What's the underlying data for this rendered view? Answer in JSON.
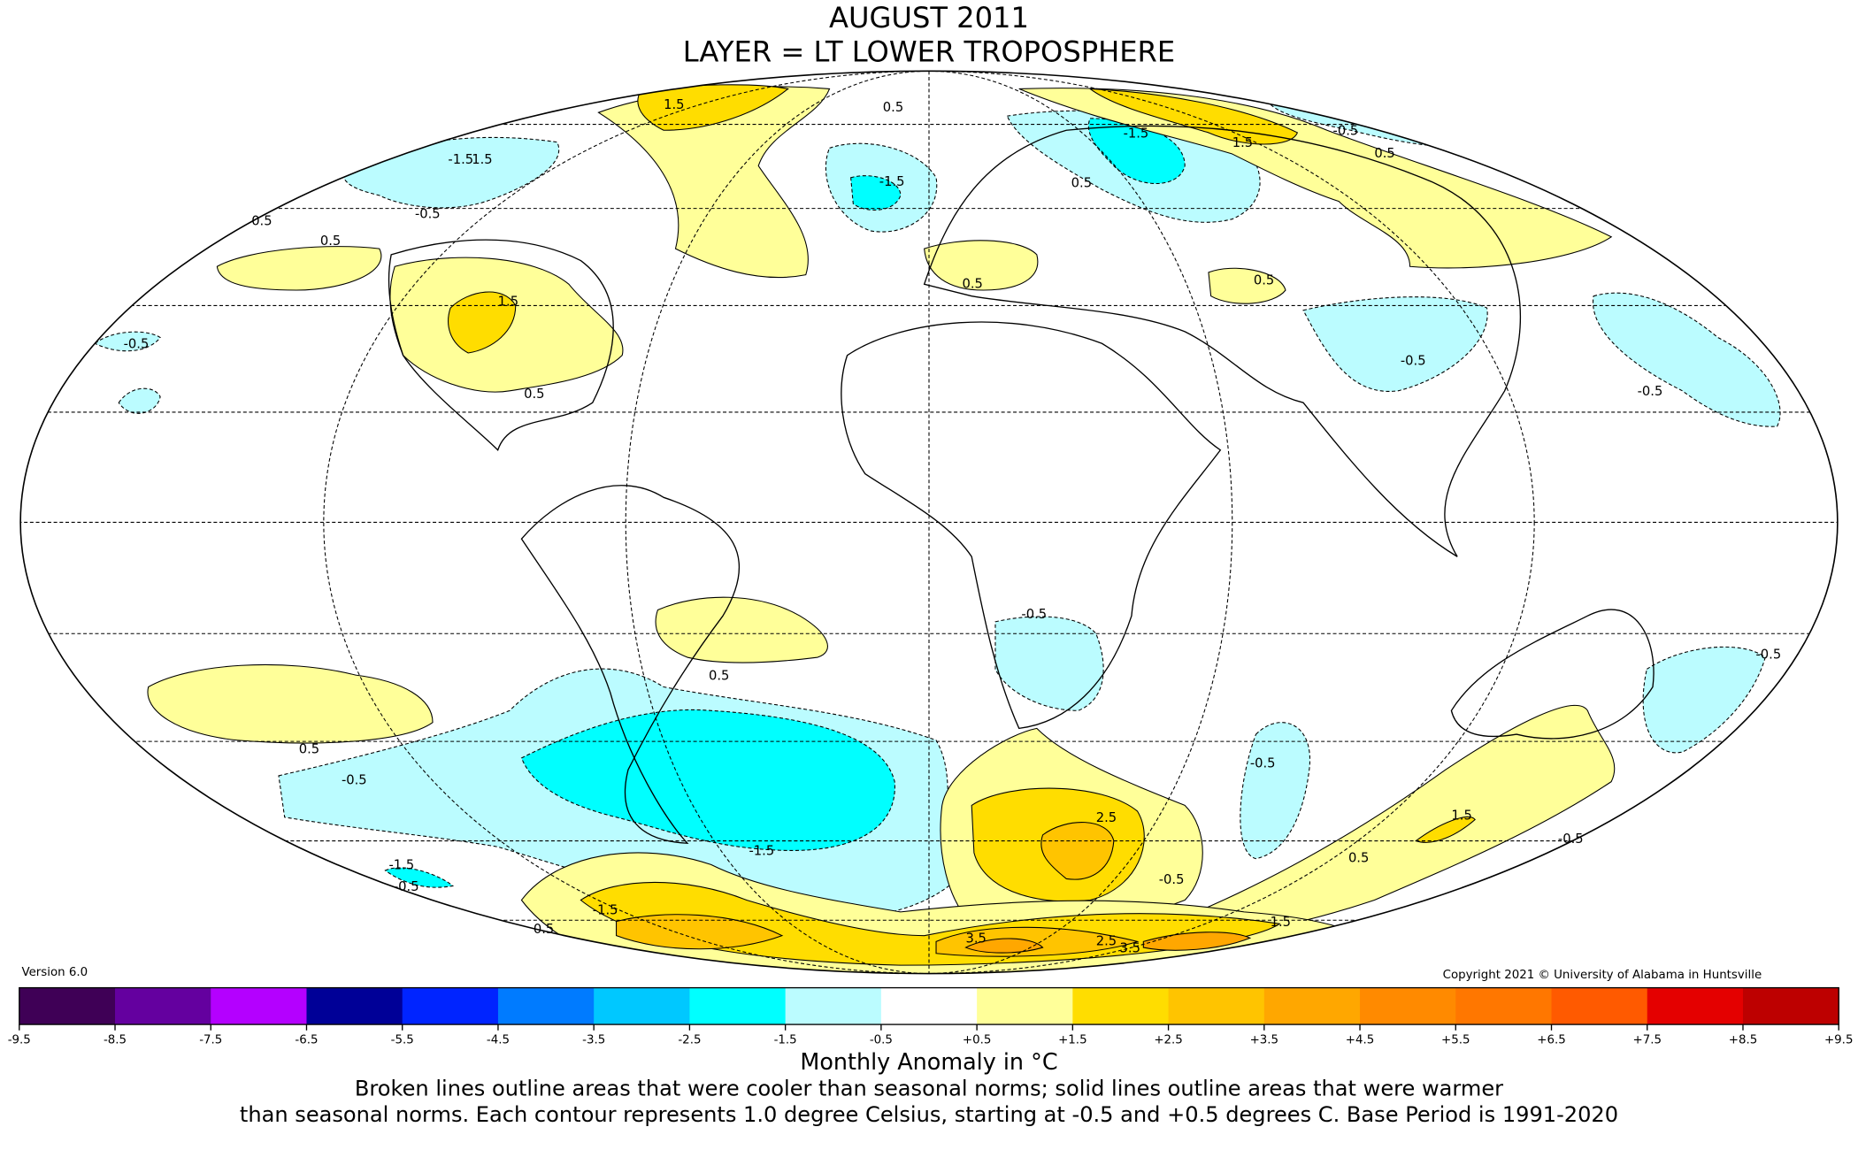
{
  "title": {
    "line1": "AUGUST 2011",
    "line2": "LAYER = LT LOWER TROPOSPHERE"
  },
  "version": "Version 6.0",
  "copyright": "Copyright 2021 © University of Alabama in Huntsville",
  "colorbar": {
    "ticks": [
      "-9.5",
      "-8.5",
      "-7.5",
      "-6.5",
      "-5.5",
      "-4.5",
      "-3.5",
      "-2.5",
      "-1.5",
      "-0.5",
      "+0.5",
      "+1.5",
      "+2.5",
      "+3.5",
      "+4.5",
      "+5.5",
      "+6.5",
      "+7.5",
      "+8.5",
      "+9.5"
    ],
    "colors": [
      "#3f0056",
      "#64009f",
      "#b400ff",
      "#000097",
      "#0024ff",
      "#007bff",
      "#00c8ff",
      "#00ffff",
      "#bbfcff",
      "#ffffff",
      "#ffff99",
      "#ffdd00",
      "#ffc400",
      "#ffa700",
      "#ff8a00",
      "#ff7700",
      "#ff5a00",
      "#e40000",
      "#bd0000"
    ],
    "label": "Monthly Anomaly in °C"
  },
  "caption": {
    "line1": "Broken lines outline areas that were cooler than seasonal norms; solid lines outline areas that were warmer",
    "line2": "than seasonal norms. Each contour represents 1.0 degree Celsius, starting at -0.5 and +0.5 degrees C. Base Period is 1991-2020"
  },
  "map": {
    "projection": "Mollweide",
    "contour_labels": [
      "1.5",
      "-1.5",
      "1.5",
      "-0.5",
      "0.5",
      "0.5",
      "1.5",
      "0.5",
      "-0.5",
      "-1.5",
      "0.5",
      "-1.5",
      "1.5",
      "-0.5",
      "0.5",
      "0.5",
      "0.5",
      "-0.5",
      "-0.5",
      "0.5",
      "-0.5",
      "0.5",
      "-0.5",
      "-1.5",
      "2.5",
      "0.5",
      "-0.5",
      "1.5",
      "0.5",
      "-0.5",
      "-1.5",
      "-0.5",
      "-0.5",
      "1.5",
      "0.5",
      "3.5",
      "2.5",
      "3.5",
      "-1.5",
      "-0.5"
    ]
  }
}
